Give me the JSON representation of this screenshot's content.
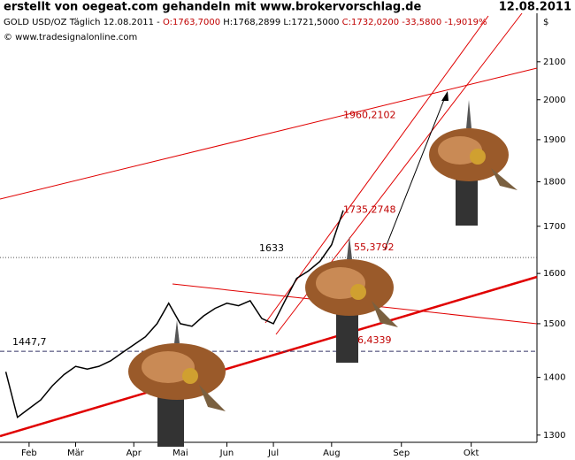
{
  "chart_data": {
    "type": "line",
    "title": "erstellt von oegeat.com gehandeln mit www.brokervorschlag.de",
    "date": "12.08.2011",
    "instrument": "GOLD USD/OZ Täglich  12.08.2011 -",
    "ohlc": "O:1763,7000",
    "ohlc_rest": "H:1768,2899 L:1721,5000",
    "close": "C:1732,0200 -33,5800 -1,9019%",
    "source": "© www.tradesignalonline.com",
    "currency": "$",
    "log_scale": true,
    "color": "#000000",
    "categories": [
      null,
      null,
      "Feb",
      null,
      null,
      null,
      "Mär",
      null,
      null,
      null,
      null,
      "Apr",
      null,
      null,
      null,
      "Mai",
      null,
      null,
      null,
      "Jun",
      null,
      null,
      null,
      "Jul",
      null,
      null,
      null,
      null,
      "Aug",
      null,
      null,
      null,
      null,
      null,
      "Sep",
      null,
      null,
      null,
      null,
      null,
      "Okt",
      null,
      null,
      null,
      null,
      null
    ],
    "values": [
      1410,
      1330,
      1345,
      1360,
      1385,
      1405,
      1420,
      1415,
      1420,
      1430,
      1445,
      1460,
      1475,
      1500,
      1540,
      1500,
      1495,
      1515,
      1530,
      1540,
      1535,
      1545,
      1510,
      1500,
      1545,
      1590,
      1605,
      1625,
      1660,
      1735,
      null,
      null,
      null,
      null,
      null,
      null,
      null,
      null,
      null,
      null,
      null,
      null,
      null,
      null,
      null,
      null
    ],
    "ylim": [
      1288,
      2235
    ],
    "yticks": [
      1300,
      1400,
      1500,
      1600,
      1700,
      1800,
      1900,
      2000,
      2100
    ],
    "hlines": [
      1633,
      {
        "value": 1447.7,
        "label": "1447,7"
      }
    ],
    "annotations": [
      {
        "value": 1960.2102,
        "label": "1960,2102"
      },
      {
        "value": 1735.2748,
        "label": "1735,2748"
      },
      {
        "label": "55,3792"
      },
      {
        "label": "6,4339"
      }
    ]
  }
}
